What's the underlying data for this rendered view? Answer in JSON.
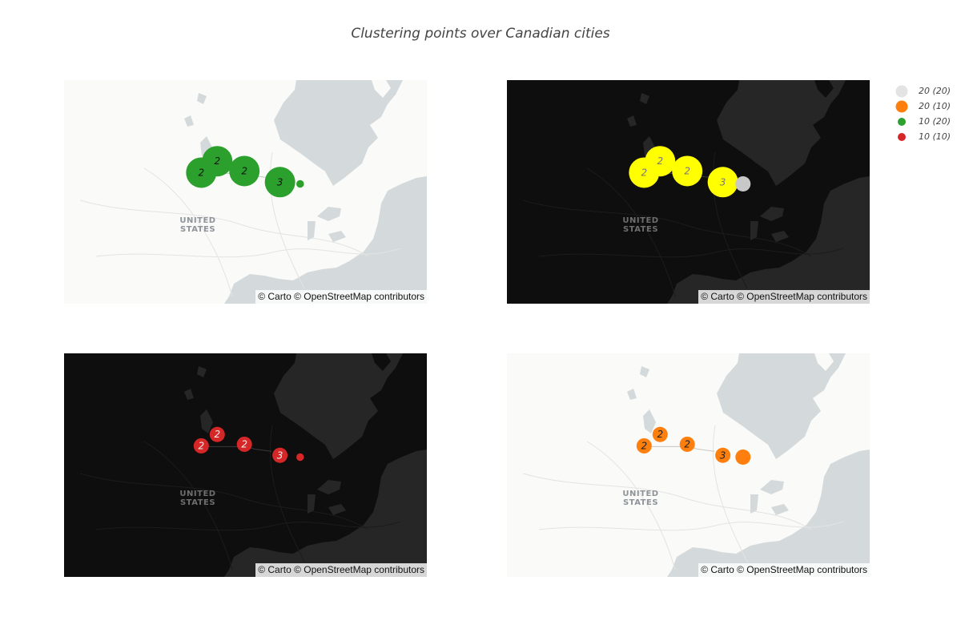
{
  "title": "Clustering points over Canadian cities",
  "attribution": "© Carto © OpenStreetMap contributors",
  "country_label": [
    "UNITED",
    "STATES"
  ],
  "legend": [
    {
      "label": "20 (20)",
      "color": "#e3e3e3",
      "size": 15
    },
    {
      "label": "20 (10)",
      "color": "#ff7f0e",
      "size": 15
    },
    {
      "label": "10 (20)",
      "color": "#2ca02c",
      "size": 10
    },
    {
      "label": "10 (10)",
      "color": "#d62728",
      "size": 10
    }
  ],
  "map_center": {
    "lat": 47.5,
    "lon": -96.5
  },
  "points": [
    {
      "lat": 49.28,
      "lon": -123.12,
      "cluster_label": "2"
    },
    {
      "lat": 53.55,
      "lon": -113.49,
      "cluster_label": "2"
    },
    {
      "lat": 49.9,
      "lon": -97.14,
      "cluster_label": "2"
    },
    {
      "lat": 45.42,
      "lon": -75.7,
      "cluster_label": "3"
    },
    {
      "lat": 44.65,
      "lon": -63.57,
      "cluster_label": ""
    }
  ],
  "maps": [
    {
      "id": "tl",
      "basemap": "light",
      "cluster_color": "#2ca02c",
      "single_color": "#2ca02c",
      "cluster_size": 20,
      "single_size": 5,
      "label_color": "#111111"
    },
    {
      "id": "tr",
      "basemap": "dark",
      "cluster_color": "#ffff00",
      "single_color": "#c8c8c8",
      "cluster_size": 20,
      "single_size": 10,
      "label_color": "#777777"
    },
    {
      "id": "bl",
      "basemap": "dark",
      "cluster_color": "#d62728",
      "single_color": "#d62728",
      "cluster_size": 10,
      "single_size": 5,
      "label_color": "#f0f0f0"
    },
    {
      "id": "br",
      "basemap": "light",
      "cluster_color": "#ff7f0e",
      "single_color": "#ff7f0e",
      "cluster_size": 10,
      "single_size": 10,
      "label_color": "#222222"
    }
  ]
}
